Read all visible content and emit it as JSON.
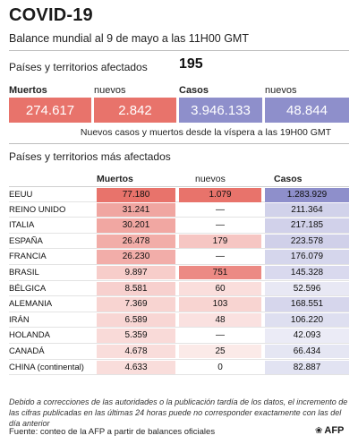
{
  "header": {
    "title": "COVID-19",
    "subtitle": "Balance mundial al 9 de mayo a las 11H00 GMT"
  },
  "affected": {
    "label": "Países y territorios afectados",
    "value": "195"
  },
  "summary": {
    "deaths_label": "Muertos",
    "new_label_1": "nuevos",
    "cases_label": "Casos",
    "new_label_2": "nuevos",
    "deaths": "274.617",
    "new_deaths": "2.842",
    "cases": "3.946.133",
    "new_cases": "48.844",
    "note": "Nuevos casos y muertos desde la víspera a las 19H00 GMT",
    "deaths_color": "#e8736b",
    "cases_color": "#8e8fcb"
  },
  "table": {
    "title": "Países y territorios más afectados",
    "headers": {
      "deaths": "Muertos",
      "new": "nuevos",
      "cases": "Casos"
    },
    "rows": [
      {
        "country": "EEUU",
        "deaths": "77.180",
        "new": "1.079",
        "cases": "1.283.929",
        "d": 77180,
        "n": 1079,
        "c": 1283929
      },
      {
        "country": "REINO UNIDO",
        "deaths": "31.241",
        "new": "—",
        "cases": "211.364",
        "d": 31241,
        "n": 0,
        "c": 211364
      },
      {
        "country": "ITALIA",
        "deaths": "30.201",
        "new": "—",
        "cases": "217.185",
        "d": 30201,
        "n": 0,
        "c": 217185
      },
      {
        "country": "ESPAÑA",
        "deaths": "26.478",
        "new": "179",
        "cases": "223.578",
        "d": 26478,
        "n": 179,
        "c": 223578
      },
      {
        "country": "FRANCIA",
        "deaths": "26.230",
        "new": "—",
        "cases": "176.079",
        "d": 26230,
        "n": 0,
        "c": 176079
      },
      {
        "country": "BRASIL",
        "deaths": "9.897",
        "new": "751",
        "cases": "145.328",
        "d": 9897,
        "n": 751,
        "c": 145328
      },
      {
        "country": "BÉLGICA",
        "deaths": "8.581",
        "new": "60",
        "cases": "52.596",
        "d": 8581,
        "n": 60,
        "c": 52596
      },
      {
        "country": "ALEMANIA",
        "deaths": "7.369",
        "new": "103",
        "cases": "168.551",
        "d": 7369,
        "n": 103,
        "c": 168551
      },
      {
        "country": "IRÁN",
        "deaths": "6.589",
        "new": "48",
        "cases": "106.220",
        "d": 6589,
        "n": 48,
        "c": 106220
      },
      {
        "country": "HOLANDA",
        "deaths": "5.359",
        "new": "—",
        "cases": "42.093",
        "d": 5359,
        "n": 0,
        "c": 42093
      },
      {
        "country": "CANADÁ",
        "deaths": "4.678",
        "new": "25",
        "cases": "66.434",
        "d": 4678,
        "n": 25,
        "c": 66434
      },
      {
        "country": "CHINA (continental)",
        "deaths": "4.633",
        "new": "0",
        "cases": "82.887",
        "d": 4633,
        "n": 0,
        "c": 82887
      }
    ]
  },
  "footnote": "Debido a correcciones de las autoridades o la publicación tardía de los datos, el incremento de las cifras publicadas en las últimas 24 horas puede no corresponder exactamente con las del día anterior",
  "source": "Fuente: conteo de la AFP a partir de balances oficiales",
  "logo": {
    "text": "AFP",
    "icon": "afp-logo-icon"
  }
}
